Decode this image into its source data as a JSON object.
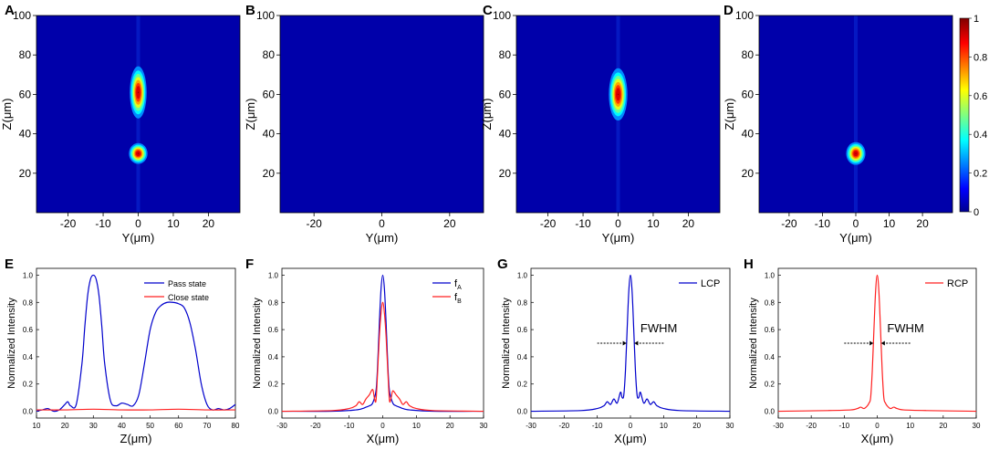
{
  "figure": {
    "panel_letters": [
      "A",
      "B",
      "C",
      "D",
      "E",
      "F",
      "G",
      "H"
    ],
    "colorbar": {
      "ticks": [
        "0",
        "0.2",
        "0.4",
        "0.6",
        "0.8",
        "1"
      ],
      "range": [
        0,
        1
      ]
    },
    "colors": {
      "blue": "#0000cc",
      "red": "#ff2020",
      "heat_bg": "#0000aa"
    }
  },
  "chart_data": [
    {
      "id": "A",
      "type": "heatmap",
      "xlabel": "Y(μm)",
      "ylabel": "Z(μm)",
      "xlim": [
        -29,
        29
      ],
      "ylim": [
        0,
        100
      ],
      "xticks": [
        -20,
        -10,
        0,
        10,
        20
      ],
      "yticks": [
        20,
        40,
        60,
        80,
        100
      ],
      "xticklabels": [
        "-20",
        "-10",
        "0",
        "10",
        "20"
      ],
      "yticklabels": [
        "20",
        "40",
        "60",
        "80",
        "100"
      ],
      "spots": [
        {
          "y": 0,
          "z": 61,
          "sy": 1.0,
          "sz": 5.5,
          "amp": 1.0
        },
        {
          "y": 0,
          "z": 30,
          "sy": 1.1,
          "sz": 2.2,
          "amp": 1.0
        }
      ]
    },
    {
      "id": "B",
      "type": "heatmap",
      "xlabel": "Y(μm)",
      "ylabel": "Z(μm)",
      "xlim": [
        -30,
        30
      ],
      "ylim": [
        0,
        100
      ],
      "xticks": [
        -20,
        0,
        20
      ],
      "yticks": [
        20,
        40,
        60,
        80,
        100
      ],
      "xticklabels": [
        "-20",
        "0",
        "20"
      ],
      "yticklabels": [
        "20",
        "40",
        "60",
        "80",
        "100"
      ],
      "spots": []
    },
    {
      "id": "C",
      "type": "heatmap",
      "xlabel": "Y(μm)",
      "ylabel": "Z(μm)",
      "xlim": [
        -29,
        29
      ],
      "ylim": [
        0,
        100
      ],
      "xticks": [
        -20,
        -10,
        0,
        10,
        20
      ],
      "yticks": [
        20,
        40,
        60,
        80,
        100
      ],
      "xticklabels": [
        "-20",
        "-10",
        "0",
        "10",
        "20"
      ],
      "yticklabels": [
        "20",
        "40",
        "60",
        "80",
        "100"
      ],
      "spots": [
        {
          "y": 0,
          "z": 60,
          "sy": 1.1,
          "sz": 5.5,
          "amp": 1.0
        }
      ]
    },
    {
      "id": "D",
      "type": "heatmap",
      "xlabel": "Y(μm)",
      "ylabel": "Z(μm)",
      "xlim": [
        -29,
        29
      ],
      "ylim": [
        0,
        100
      ],
      "xticks": [
        -20,
        -10,
        0,
        10,
        20
      ],
      "yticks": [
        20,
        40,
        60,
        80,
        100
      ],
      "xticklabels": [
        "-20",
        "-10",
        "0",
        "10",
        "20"
      ],
      "yticklabels": [
        "20",
        "40",
        "60",
        "80",
        "100"
      ],
      "spots": [
        {
          "y": 0,
          "z": 30,
          "sy": 1.2,
          "sz": 2.4,
          "amp": 1.0
        }
      ]
    },
    {
      "id": "E",
      "type": "line",
      "xlabel": "Z(μm)",
      "ylabel": "Normalized Intensity",
      "xlim": [
        10,
        80
      ],
      "ylim": [
        -0.05,
        1.05
      ],
      "xticks": [
        10,
        20,
        30,
        40,
        50,
        60,
        70,
        80
      ],
      "yticks": [
        0,
        0.2,
        0.4,
        0.6,
        0.8,
        1.0
      ],
      "xticklabels": [
        "10",
        "20",
        "30",
        "40",
        "50",
        "60",
        "70",
        "80"
      ],
      "yticklabels": [
        "0.0",
        "0.2",
        "0.4",
        "0.6",
        "0.8",
        "1.0"
      ],
      "legend": "top-right",
      "series": [
        {
          "name": "Pass state",
          "color": "#0000cc",
          "x": [
            10,
            12,
            14,
            16,
            18,
            20,
            21,
            22,
            24,
            26,
            27,
            28,
            29,
            30,
            31,
            32,
            33,
            34,
            36,
            38,
            40,
            42,
            44,
            46,
            48,
            50,
            52,
            54,
            56,
            58,
            60,
            62,
            64,
            66,
            68,
            70,
            72,
            74,
            76,
            78,
            80
          ],
          "y": [
            0.0,
            0.01,
            0.02,
            0.0,
            0.01,
            0.05,
            0.07,
            0.04,
            0.05,
            0.35,
            0.62,
            0.85,
            0.97,
            1.0,
            0.97,
            0.85,
            0.62,
            0.35,
            0.08,
            0.04,
            0.06,
            0.05,
            0.04,
            0.12,
            0.35,
            0.6,
            0.73,
            0.78,
            0.8,
            0.8,
            0.79,
            0.76,
            0.65,
            0.45,
            0.2,
            0.05,
            0.01,
            0.02,
            0.01,
            0.02,
            0.05
          ]
        },
        {
          "name": "Close state",
          "color": "#ff2020",
          "x": [
            10,
            20,
            30,
            40,
            50,
            60,
            70,
            80
          ],
          "y": [
            0.01,
            0.01,
            0.015,
            0.01,
            0.01,
            0.015,
            0.01,
            0.01
          ]
        }
      ]
    },
    {
      "id": "F",
      "type": "line",
      "xlabel": "X(μm)",
      "ylabel": "Normalized Intensity",
      "xlim": [
        -30,
        30
      ],
      "ylim": [
        -0.05,
        1.05
      ],
      "xticks": [
        -30,
        -20,
        -10,
        0,
        10,
        20,
        30
      ],
      "yticks": [
        0,
        0.2,
        0.4,
        0.6,
        0.8,
        1.0
      ],
      "xticklabels": [
        "-30",
        "-20",
        "-10",
        "0",
        "10",
        "20",
        "30"
      ],
      "yticklabels": [
        "0.0",
        "0.2",
        "0.4",
        "0.6",
        "0.8",
        "1.0"
      ],
      "legend": "top-right",
      "legend_labels": [
        {
          "main": "f",
          "sub": "A"
        },
        {
          "main": "f",
          "sub": "B"
        }
      ],
      "series": [
        {
          "name": "fA",
          "color": "#0000cc",
          "x": [
            -30,
            -15,
            -8,
            -6,
            -5,
            -4,
            -3,
            -2,
            -1.5,
            -1,
            -0.5,
            0,
            0.5,
            1,
            1.5,
            2,
            3,
            4,
            5,
            6,
            8,
            15,
            30
          ],
          "y": [
            0,
            0,
            0.01,
            0.02,
            0.03,
            0.04,
            0.06,
            0.15,
            0.35,
            0.65,
            0.9,
            1.0,
            0.9,
            0.65,
            0.35,
            0.15,
            0.06,
            0.04,
            0.03,
            0.02,
            0.01,
            0,
            0
          ]
        },
        {
          "name": "fB",
          "color": "#ff2020",
          "x": [
            -30,
            -15,
            -10,
            -8,
            -7,
            -6,
            -5,
            -4,
            -3,
            -2.5,
            -2,
            -1.5,
            -1,
            -0.5,
            0,
            0.5,
            1,
            1.5,
            2,
            2.5,
            3,
            4,
            5,
            6,
            7,
            8,
            10,
            15,
            30
          ],
          "y": [
            0,
            0.005,
            0.02,
            0.04,
            0.07,
            0.05,
            0.09,
            0.12,
            0.16,
            0.1,
            0.08,
            0.3,
            0.55,
            0.72,
            0.8,
            0.72,
            0.55,
            0.3,
            0.08,
            0.1,
            0.15,
            0.12,
            0.09,
            0.05,
            0.07,
            0.04,
            0.02,
            0.005,
            0
          ]
        }
      ]
    },
    {
      "id": "G",
      "type": "line",
      "xlabel": "X(μm)",
      "ylabel": "Normalized Intensity",
      "xlim": [
        -30,
        30
      ],
      "ylim": [
        -0.05,
        1.05
      ],
      "xticks": [
        -30,
        -20,
        -10,
        0,
        10,
        20,
        30
      ],
      "yticks": [
        0,
        0.2,
        0.4,
        0.6,
        0.8,
        1.0
      ],
      "xticklabels": [
        "-30",
        "-20",
        "-10",
        "0",
        "10",
        "20",
        "30"
      ],
      "yticklabels": [
        "0.0",
        "0.2",
        "0.4",
        "0.6",
        "0.8",
        "1.0"
      ],
      "legend": "top-right",
      "annotation": "FWHM",
      "fwhm_arrows": {
        "left": [
          -10,
          -1.2
        ],
        "right": [
          10,
          1.2
        ],
        "y": 0.5
      },
      "series": [
        {
          "name": "LCP",
          "color": "#0000cc",
          "x": [
            -30,
            -15,
            -10,
            -8,
            -7,
            -6,
            -5,
            -4,
            -3,
            -2.5,
            -2,
            -1.5,
            -1,
            -0.5,
            0,
            0.5,
            1,
            1.5,
            2,
            2.5,
            3,
            4,
            5,
            6,
            7,
            8,
            10,
            15,
            30
          ],
          "y": [
            0,
            0.005,
            0.02,
            0.04,
            0.07,
            0.05,
            0.09,
            0.06,
            0.14,
            0.1,
            0.12,
            0.3,
            0.6,
            0.88,
            1.0,
            0.88,
            0.6,
            0.3,
            0.12,
            0.1,
            0.14,
            0.06,
            0.09,
            0.05,
            0.07,
            0.04,
            0.02,
            0.005,
            0
          ]
        }
      ]
    },
    {
      "id": "H",
      "type": "line",
      "xlabel": "X(μm)",
      "ylabel": "Normalized Intensity",
      "xlim": [
        -30,
        30
      ],
      "ylim": [
        -0.05,
        1.05
      ],
      "xticks": [
        -30,
        -20,
        -10,
        0,
        10,
        20,
        30
      ],
      "yticks": [
        0,
        0.2,
        0.4,
        0.6,
        0.8,
        1.0
      ],
      "xticklabels": [
        "-30",
        "-20",
        "-10",
        "0",
        "10",
        "20",
        "30"
      ],
      "yticklabels": [
        "0.0",
        "0.2",
        "0.4",
        "0.6",
        "0.8",
        "1.0"
      ],
      "legend": "top-right",
      "annotation": "FWHM",
      "fwhm_arrows": {
        "left": [
          -10,
          -1.2
        ],
        "right": [
          10,
          1.2
        ],
        "y": 0.5
      },
      "series": [
        {
          "name": "RCP",
          "color": "#ff2020",
          "x": [
            -30,
            -15,
            -8,
            -6,
            -5,
            -4,
            -3,
            -2.5,
            -2,
            -1.5,
            -1,
            -0.5,
            0,
            0.5,
            1,
            1.5,
            2,
            2.5,
            3,
            4,
            5,
            6,
            8,
            15,
            30
          ],
          "y": [
            0,
            0.005,
            0.01,
            0.02,
            0.03,
            0.02,
            0.04,
            0.06,
            0.1,
            0.3,
            0.6,
            0.88,
            1.0,
            0.88,
            0.6,
            0.3,
            0.1,
            0.06,
            0.04,
            0.02,
            0.03,
            0.02,
            0.01,
            0.005,
            0
          ]
        }
      ]
    }
  ]
}
